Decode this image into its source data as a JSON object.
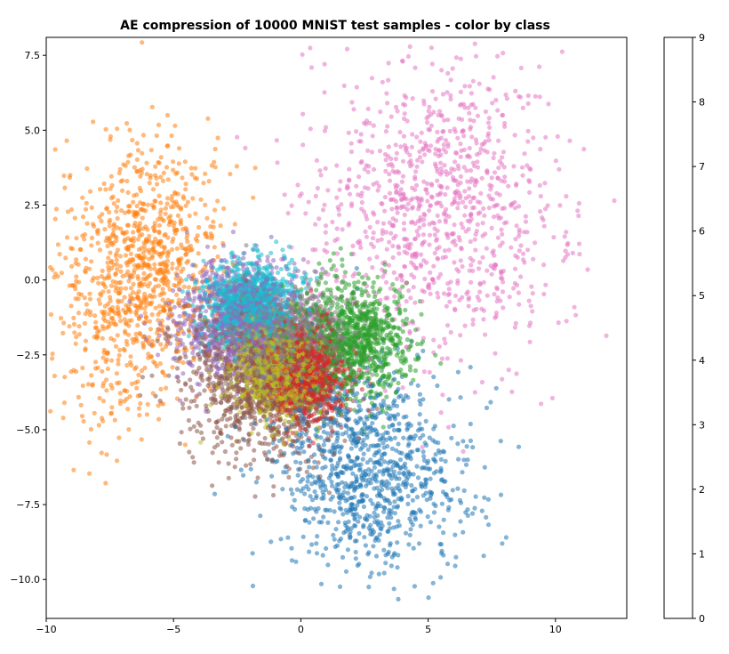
{
  "chart_data": {
    "type": "scatter",
    "title": "AE compression of 10000 MNIST test samples - color by class",
    "xlabel": "",
    "ylabel": "",
    "xlim": [
      -10,
      12.8
    ],
    "ylim": [
      -11.3,
      8.1
    ],
    "xticks": [
      -10,
      -5,
      0,
      5,
      10
    ],
    "xtick_labels": [
      "−10",
      "−5",
      "0",
      "5",
      "10"
    ],
    "yticks": [
      7.5,
      5.0,
      2.5,
      0.0,
      -2.5,
      -5.0,
      -7.5,
      -10.0
    ],
    "ytick_labels": [
      "7.5",
      "5.0",
      "2.5",
      "0.0",
      "−2.5",
      "−5.0",
      "−7.5",
      "−10.0"
    ],
    "grid": false,
    "total_samples": 10000,
    "point_alpha": 0.55,
    "colorbar": {
      "ticks": [
        "0",
        "1",
        "2",
        "3",
        "4",
        "5",
        "6",
        "7",
        "8",
        "9"
      ],
      "range": [
        0,
        9
      ]
    },
    "classes": [
      {
        "label": "0",
        "color": "#1f77b4",
        "center": [
          2.6,
          -6.2
        ],
        "spread": [
          1.9,
          1.6
        ],
        "rotation": -0.35
      },
      {
        "label": "1",
        "color": "#ff7f0e",
        "center": [
          -6.4,
          0.2
        ],
        "spread": [
          1.5,
          2.3
        ],
        "rotation": -0.25
      },
      {
        "label": "2",
        "color": "#2ca02c",
        "center": [
          2.0,
          -2.0
        ],
        "spread": [
          1.2,
          1.0
        ],
        "rotation": 0.0
      },
      {
        "label": "3",
        "color": "#d62728",
        "center": [
          0.2,
          -3.1
        ],
        "spread": [
          0.8,
          0.8
        ],
        "rotation": 0.0
      },
      {
        "label": "4",
        "color": "#9467bd",
        "center": [
          -2.4,
          -1.3
        ],
        "spread": [
          1.2,
          0.95
        ],
        "rotation": 0.2
      },
      {
        "label": "5",
        "color": "#8c564b",
        "center": [
          -1.6,
          -3.5
        ],
        "spread": [
          1.6,
          1.2
        ],
        "rotation": -0.45
      },
      {
        "label": "6",
        "color": "#e377c2",
        "center": [
          5.3,
          2.3
        ],
        "spread": [
          2.5,
          2.5
        ],
        "rotation": -0.35
      },
      {
        "label": "7",
        "color": "#7f7f7f",
        "center": [
          -0.5,
          -2.0
        ],
        "spread": [
          1.2,
          0.9
        ],
        "rotation": 0.0
      },
      {
        "label": "8",
        "color": "#bcbd22",
        "center": [
          -0.9,
          -3.0
        ],
        "spread": [
          0.9,
          0.8
        ],
        "rotation": 0.0
      },
      {
        "label": "9",
        "color": "#17becf",
        "center": [
          -2.0,
          -0.8
        ],
        "spread": [
          0.9,
          0.7
        ],
        "rotation": 0.1
      }
    ]
  }
}
